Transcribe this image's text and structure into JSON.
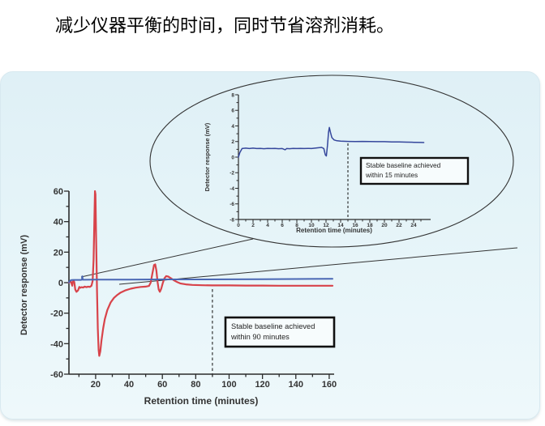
{
  "title": "减少仪器平衡的时间，同时节省溶剂消耗。",
  "colors": {
    "panel_top": "#dff0f6",
    "panel_bottom": "#eef8fb",
    "axis": "#2b2b2b",
    "tick_label": "#333333",
    "box_border": "#111111",
    "box_fill": "#f7fcfd",
    "dash_line": "#222222",
    "callout_line": "#333333",
    "red_curve": "#d8434a",
    "blue_curve_main": "#4a67b4",
    "blue_curve_inset": "#35479c"
  },
  "chart_data": [
    {
      "id": "main",
      "type": "line",
      "title": "",
      "xlabel": "Retention time (minutes)",
      "ylabel": "Detector response (mV)",
      "xlim": [
        4,
        163
      ],
      "ylim": [
        -60,
        60
      ],
      "grid": false,
      "legend": "none",
      "xticks": [
        20,
        40,
        60,
        80,
        100,
        120,
        140,
        160
      ],
      "xminor": [
        10,
        30,
        50,
        70,
        90,
        110,
        130,
        150
      ],
      "yticks": [
        -60,
        -40,
        -20,
        0,
        20,
        40,
        60
      ],
      "yminor": [
        -50,
        -30,
        -10,
        10,
        30,
        50
      ],
      "series": [
        {
          "name": "red-curve",
          "color": "#d8434a",
          "points": [
            [
              4,
              0
            ],
            [
              4.5,
              0.5
            ],
            [
              5,
              1
            ],
            [
              5.5,
              -0.5
            ],
            [
              6,
              -2
            ],
            [
              6.3,
              0.5
            ],
            [
              6.8,
              1.2
            ],
            [
              7.2,
              0.3
            ],
            [
              7.8,
              -4.5
            ],
            [
              8.5,
              -6
            ],
            [
              9.5,
              -5
            ],
            [
              10.2,
              -2.8
            ],
            [
              10.8,
              -3.4
            ],
            [
              11.5,
              -3
            ],
            [
              12.5,
              -3.2
            ],
            [
              13.5,
              -2.6
            ],
            [
              14.5,
              -3
            ],
            [
              15.5,
              -2.6
            ],
            [
              16.5,
              -2.8
            ],
            [
              17.5,
              -2
            ],
            [
              18.2,
              1
            ],
            [
              18.8,
              15
            ],
            [
              19.3,
              45
            ],
            [
              19.6,
              60
            ],
            [
              19.9,
              58
            ],
            [
              20.3,
              30
            ],
            [
              20.8,
              -5
            ],
            [
              21.3,
              -30
            ],
            [
              21.8,
              -44
            ],
            [
              22.2,
              -48
            ],
            [
              22.8,
              -45
            ],
            [
              23.5,
              -38
            ],
            [
              24.5,
              -30
            ],
            [
              25.5,
              -24
            ],
            [
              27,
              -18
            ],
            [
              29,
              -13
            ],
            [
              31,
              -10
            ],
            [
              33,
              -8
            ],
            [
              35,
              -6.5
            ],
            [
              38,
              -5
            ],
            [
              41,
              -4
            ],
            [
              44,
              -3.3
            ],
            [
              47,
              -2.8
            ],
            [
              50,
              -2.6
            ],
            [
              52,
              -2.2
            ],
            [
              53,
              0
            ],
            [
              54,
              6
            ],
            [
              55,
              11.5
            ],
            [
              55.7,
              12
            ],
            [
              56.4,
              8
            ],
            [
              57.2,
              0
            ],
            [
              57.8,
              -4.5
            ],
            [
              58.5,
              -6
            ],
            [
              59.3,
              -4
            ],
            [
              60.2,
              -0.5
            ],
            [
              61.2,
              2.8
            ],
            [
              62.3,
              4.3
            ],
            [
              63.5,
              4
            ],
            [
              65,
              3
            ],
            [
              67,
              1.5
            ],
            [
              69,
              0.3
            ],
            [
              71,
              -0.6
            ],
            [
              74,
              -1.1
            ],
            [
              78,
              -1.5
            ],
            [
              84,
              -1.7
            ],
            [
              90,
              -1.8
            ],
            [
              100,
              -1.8
            ],
            [
              110,
              -1.9
            ],
            [
              120,
              -1.9
            ],
            [
              130,
              -2
            ],
            [
              140,
              -2
            ],
            [
              150,
              -2
            ],
            [
              160,
              -2
            ],
            [
              162,
              -2
            ]
          ]
        },
        {
          "name": "blue-curve",
          "color": "#4a67b4",
          "points": [
            [
              4,
              0.2
            ],
            [
              4.6,
              1.2
            ],
            [
              5.5,
              1.7
            ],
            [
              7,
              1.8
            ],
            [
              9,
              1.8
            ],
            [
              11,
              1.8
            ],
            [
              11.8,
              1.9
            ],
            [
              12,
              4.2
            ],
            [
              12.3,
              1.9
            ],
            [
              14,
              1.9
            ],
            [
              20,
              2
            ],
            [
              30,
              2
            ],
            [
              40,
              2
            ],
            [
              60,
              2.1
            ],
            [
              80,
              2.1
            ],
            [
              100,
              2.2
            ],
            [
              120,
              2.3
            ],
            [
              140,
              2.4
            ],
            [
              160,
              2.5
            ],
            [
              162,
              2.5
            ]
          ]
        }
      ],
      "annotation": {
        "dashed_x": 90,
        "box_line1": "Stable baseline achieved",
        "box_line2": "within 90 minutes"
      }
    },
    {
      "id": "inset",
      "type": "line",
      "title": "",
      "xlabel": "Retention time (minutes)",
      "ylabel": "Detector response (mV)",
      "xlim": [
        0,
        26
      ],
      "ylim": [
        -8,
        8
      ],
      "grid": false,
      "legend": "none",
      "xticks": [
        0,
        2,
        4,
        6,
        8,
        10,
        12,
        14,
        16,
        18,
        20,
        22,
        24
      ],
      "xminor": [
        1,
        3,
        5,
        7,
        9,
        11,
        13,
        15,
        17,
        19,
        21,
        23,
        25
      ],
      "yticks": [
        -8,
        -6,
        -4,
        -2,
        0,
        2,
        4,
        6,
        8
      ],
      "yminor": [
        -7,
        -5,
        -3,
        -1,
        1,
        3,
        5,
        7
      ],
      "series": [
        {
          "name": "blue-curve",
          "color": "#35479c",
          "points": [
            [
              0,
              0
            ],
            [
              0.2,
              0.6
            ],
            [
              0.5,
              1.1
            ],
            [
              1,
              1.15
            ],
            [
              1.5,
              1.1
            ],
            [
              2,
              1.15
            ],
            [
              2.5,
              1.1
            ],
            [
              3,
              1.12
            ],
            [
              3.5,
              1.08
            ],
            [
              4,
              1.12
            ],
            [
              4.5,
              1.1
            ],
            [
              5,
              1.12
            ],
            [
              5.5,
              1.08
            ],
            [
              6,
              1.1
            ],
            [
              6.4,
              0.95
            ],
            [
              6.6,
              1.1
            ],
            [
              7,
              1.08
            ],
            [
              7.5,
              1.12
            ],
            [
              8,
              1.1
            ],
            [
              8.5,
              1.12
            ],
            [
              9,
              1.1
            ],
            [
              9.5,
              1.12
            ],
            [
              10,
              1.1
            ],
            [
              10.5,
              1.15
            ],
            [
              11,
              1.2
            ],
            [
              11.4,
              1.25
            ],
            [
              11.7,
              1.1
            ],
            [
              11.9,
              0.3
            ],
            [
              12.05,
              0.15
            ],
            [
              12.2,
              1.5
            ],
            [
              12.35,
              3.2
            ],
            [
              12.45,
              3.8
            ],
            [
              12.6,
              3.2
            ],
            [
              12.8,
              2.5
            ],
            [
              13.1,
              2.2
            ],
            [
              13.5,
              2.1
            ],
            [
              14,
              2.05
            ],
            [
              15,
              2.02
            ],
            [
              16,
              2
            ],
            [
              17,
              2.02
            ],
            [
              18,
              2
            ],
            [
              19,
              1.98
            ],
            [
              20,
              1.98
            ],
            [
              21,
              1.95
            ],
            [
              22,
              1.95
            ],
            [
              23,
              1.92
            ],
            [
              24,
              1.9
            ],
            [
              25,
              1.88
            ],
            [
              25.4,
              1.87
            ]
          ]
        }
      ],
      "annotation": {
        "dashed_x": 15,
        "box_line1": "Stable baseline achieved",
        "box_line2": "within 15 minutes"
      }
    }
  ]
}
